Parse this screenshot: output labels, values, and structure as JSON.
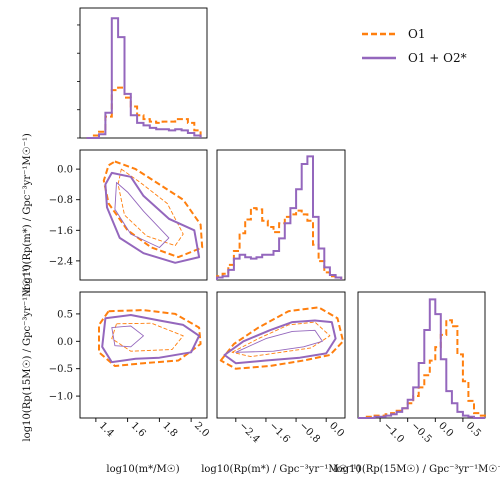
{
  "colors": {
    "o1": "#ff7f0e",
    "o1o2": "#9467bd"
  },
  "legend": {
    "o1": "O1",
    "o1o2": "O1 + O2*"
  },
  "axis_labels": {
    "mstar": "log10(m*/M☉)",
    "rp_mstar": "log10(Rp(m*) / Gpc⁻³yr⁻¹M☉⁻¹)",
    "rp_15": "log10(Rp(15M☉) / Gpc⁻³yr⁻¹M☉⁻¹)"
  },
  "ticks": {
    "mstar": [
      "1.4",
      "1.6",
      "1.8",
      "2.0"
    ],
    "rp_mstar": [
      "−2.4",
      "−1.6",
      "−0.8",
      "0.0"
    ],
    "rp_15": [
      "−1.0",
      "−0.5",
      "0.0",
      "0.5"
    ]
  },
  "chart_data": {
    "type": "corner",
    "parameters": [
      "log10 m*",
      "log10 Rp(m*)",
      "log10 Rp(15M☉)"
    ],
    "ranges": [
      [
        1.3,
        2.1
      ],
      [
        -2.9,
        0.5
      ],
      [
        -1.4,
        0.9
      ]
    ],
    "series": [
      {
        "name": "O1",
        "style": "dashed",
        "hist_mstar": {
          "edges": [
            1.34,
            1.38,
            1.42,
            1.46,
            1.5,
            1.54,
            1.58,
            1.62,
            1.66,
            1.7,
            1.74,
            1.78,
            1.82,
            1.86,
            1.9,
            1.94,
            1.98,
            2.02,
            2.06
          ],
          "values": [
            0,
            0.02,
            0.05,
            0.17,
            0.38,
            0.4,
            0.32,
            0.25,
            0.18,
            0.15,
            0.13,
            0.12,
            0.13,
            0.13,
            0.15,
            0.15,
            0.12,
            0.06
          ]
        },
        "hist_rp_mstar": {
          "edges": [
            -2.9,
            -2.75,
            -2.6,
            -2.45,
            -2.3,
            -2.15,
            -2.0,
            -1.85,
            -1.7,
            -1.55,
            -1.4,
            -1.25,
            -1.1,
            -0.95,
            -0.8,
            -0.65,
            -0.5,
            -0.35,
            -0.2,
            -0.05,
            0.1,
            0.25,
            0.4
          ],
          "values": [
            0.03,
            0.05,
            0.12,
            0.23,
            0.37,
            0.48,
            0.57,
            0.56,
            0.47,
            0.42,
            0.38,
            0.45,
            0.5,
            0.52,
            0.55,
            0.52,
            0.47,
            0.28,
            0.15,
            0.06,
            0.03,
            0.02
          ]
        },
        "hist_rp_15": {
          "edges": [
            -1.4,
            -1.3,
            -1.2,
            -1.1,
            -1.0,
            -0.9,
            -0.8,
            -0.7,
            -0.6,
            -0.5,
            -0.4,
            -0.3,
            -0.2,
            -0.1,
            0.0,
            0.1,
            0.2,
            0.3,
            0.4,
            0.5,
            0.6,
            0.7,
            0.8,
            0.9
          ],
          "values": [
            0,
            0.01,
            0.01,
            0.02,
            0.02,
            0.03,
            0.04,
            0.06,
            0.08,
            0.12,
            0.18,
            0.25,
            0.35,
            0.47,
            0.58,
            0.68,
            0.8,
            0.75,
            0.52,
            0.3,
            0.14,
            0.04,
            0.02
          ]
        },
        "contours": {
          "mstar_vs_rp_mstar": [
            [
              [
                1.52,
                0.2
              ],
              [
                1.65,
                0.0
              ],
              [
                1.8,
                -0.4
              ],
              [
                1.95,
                -0.8
              ],
              [
                2.06,
                -1.45
              ],
              [
                2.07,
                -2.05
              ],
              [
                1.92,
                -2.3
              ],
              [
                1.75,
                -2.05
              ],
              [
                1.6,
                -1.6
              ],
              [
                1.48,
                -0.9
              ],
              [
                1.45,
                -0.3
              ],
              [
                1.48,
                0.1
              ]
            ],
            [
              [
                1.56,
                0.0
              ],
              [
                1.68,
                -0.35
              ],
              [
                1.85,
                -0.9
              ],
              [
                1.95,
                -1.7
              ],
              [
                1.9,
                -2.0
              ],
              [
                1.72,
                -1.75
              ],
              [
                1.58,
                -1.2
              ],
              [
                1.54,
                -0.4
              ]
            ]
          ],
          "mstar_vs_rp_15": [
            [
              [
                1.48,
                0.55
              ],
              [
                1.7,
                0.57
              ],
              [
                1.9,
                0.5
              ],
              [
                2.05,
                0.25
              ],
              [
                2.06,
                -0.05
              ],
              [
                1.92,
                -0.35
              ],
              [
                1.7,
                -0.4
              ],
              [
                1.52,
                -0.45
              ],
              [
                1.42,
                -0.2
              ],
              [
                1.42,
                0.3
              ]
            ],
            [
              [
                1.53,
                0.32
              ],
              [
                1.75,
                0.33
              ],
              [
                1.95,
                0.1
              ],
              [
                1.88,
                -0.15
              ],
              [
                1.62,
                -0.18
              ],
              [
                1.5,
                0.05
              ]
            ]
          ],
          "rp_mstar_vs_rp_15": [
            [
              [
                -2.8,
                -0.35
              ],
              [
                -2.45,
                -0.05
              ],
              [
                -1.8,
                0.25
              ],
              [
                -1.0,
                0.55
              ],
              [
                -0.2,
                0.62
              ],
              [
                0.3,
                0.42
              ],
              [
                0.45,
                0.0
              ],
              [
                0.1,
                -0.25
              ],
              [
                -0.6,
                -0.35
              ],
              [
                -1.5,
                -0.45
              ],
              [
                -2.4,
                -0.5
              ]
            ],
            [
              [
                -2.5,
                -0.2
              ],
              [
                -1.8,
                0.05
              ],
              [
                -1.0,
                0.3
              ],
              [
                -0.3,
                0.35
              ],
              [
                0.1,
                0.1
              ],
              [
                -0.4,
                -0.12
              ],
              [
                -1.2,
                -0.2
              ],
              [
                -2.0,
                -0.28
              ]
            ]
          ]
        }
      },
      {
        "name": "O1 + O2*",
        "style": "solid",
        "hist_mstar": {
          "edges": [
            1.34,
            1.38,
            1.42,
            1.46,
            1.5,
            1.54,
            1.58,
            1.62,
            1.66,
            1.7,
            1.74,
            1.78,
            1.82,
            1.86,
            1.9,
            1.94,
            1.98,
            2.02,
            2.06
          ],
          "values": [
            0,
            0,
            0.03,
            0.2,
            0.95,
            0.8,
            0.35,
            0.18,
            0.12,
            0.1,
            0.08,
            0.07,
            0.07,
            0.06,
            0.07,
            0.06,
            0.04,
            0.02
          ]
        },
        "hist_rp_mstar": {
          "edges": [
            -2.9,
            -2.75,
            -2.6,
            -2.45,
            -2.3,
            -2.15,
            -2.0,
            -1.85,
            -1.7,
            -1.55,
            -1.4,
            -1.25,
            -1.1,
            -0.95,
            -0.8,
            -0.65,
            -0.5,
            -0.35,
            -0.2,
            -0.05,
            0.1,
            0.25,
            0.4
          ],
          "values": [
            0.02,
            0.03,
            0.08,
            0.17,
            0.2,
            0.18,
            0.17,
            0.18,
            0.2,
            0.2,
            0.23,
            0.33,
            0.45,
            0.57,
            0.72,
            0.92,
            0.98,
            0.5,
            0.25,
            0.1,
            0.04,
            0.02
          ]
        },
        "hist_rp_15": {
          "edges": [
            -1.4,
            -1.3,
            -1.2,
            -1.1,
            -1.0,
            -0.9,
            -0.8,
            -0.7,
            -0.6,
            -0.5,
            -0.4,
            -0.3,
            -0.2,
            -0.1,
            0.0,
            0.1,
            0.2,
            0.3,
            0.4,
            0.5,
            0.6,
            0.7,
            0.8,
            0.9
          ],
          "values": [
            0,
            0,
            0,
            0.01,
            0.01,
            0.02,
            0.03,
            0.05,
            0.08,
            0.15,
            0.25,
            0.45,
            0.72,
            0.97,
            0.85,
            0.48,
            0.22,
            0.12,
            0.05,
            0.02,
            0.01,
            0,
            0
          ]
        },
        "contours": {
          "mstar_vs_rp_mstar": [
            [
              [
                1.5,
                -0.1
              ],
              [
                1.62,
                -0.2
              ],
              [
                1.7,
                -0.7
              ],
              [
                1.86,
                -1.3
              ],
              [
                2.02,
                -1.6
              ],
              [
                2.05,
                -2.3
              ],
              [
                1.9,
                -2.45
              ],
              [
                1.7,
                -2.2
              ],
              [
                1.55,
                -1.8
              ],
              [
                1.47,
                -1.0
              ],
              [
                1.46,
                -0.4
              ]
            ],
            [
              [
                1.53,
                -0.35
              ],
              [
                1.6,
                -0.6
              ],
              [
                1.7,
                -1.1
              ],
              [
                1.86,
                -1.8
              ],
              [
                1.8,
                -2.05
              ],
              [
                1.62,
                -1.7
              ],
              [
                1.52,
                -1.05
              ]
            ]
          ],
          "mstar_vs_rp_15": [
            [
              [
                1.46,
                0.42
              ],
              [
                1.62,
                0.48
              ],
              [
                1.8,
                0.38
              ],
              [
                1.95,
                0.3
              ],
              [
                2.05,
                0.1
              ],
              [
                2.0,
                -0.2
              ],
              [
                1.8,
                -0.3
              ],
              [
                1.65,
                -0.32
              ],
              [
                1.5,
                -0.38
              ],
              [
                1.44,
                -0.1
              ]
            ],
            [
              [
                1.5,
                0.25
              ],
              [
                1.62,
                0.28
              ],
              [
                1.7,
                0.1
              ],
              [
                1.62,
                -0.1
              ],
              [
                1.52,
                -0.08
              ]
            ]
          ],
          "rp_mstar_vs_rp_15": [
            [
              [
                -2.7,
                -0.25
              ],
              [
                -2.2,
                0.0
              ],
              [
                -1.5,
                0.2
              ],
              [
                -0.9,
                0.35
              ],
              [
                -0.3,
                0.38
              ],
              [
                0.15,
                0.35
              ],
              [
                0.25,
                0.05
              ],
              [
                0.0,
                -0.22
              ],
              [
                -0.7,
                -0.3
              ],
              [
                -1.6,
                -0.35
              ],
              [
                -2.4,
                -0.4
              ]
            ],
            [
              [
                -2.4,
                -0.2
              ],
              [
                -1.6,
                0.05
              ],
              [
                -0.9,
                0.18
              ],
              [
                -0.3,
                0.2
              ],
              [
                -0.1,
                0.0
              ],
              [
                -0.6,
                -0.1
              ],
              [
                -1.4,
                -0.18
              ]
            ]
          ]
        }
      }
    ]
  }
}
